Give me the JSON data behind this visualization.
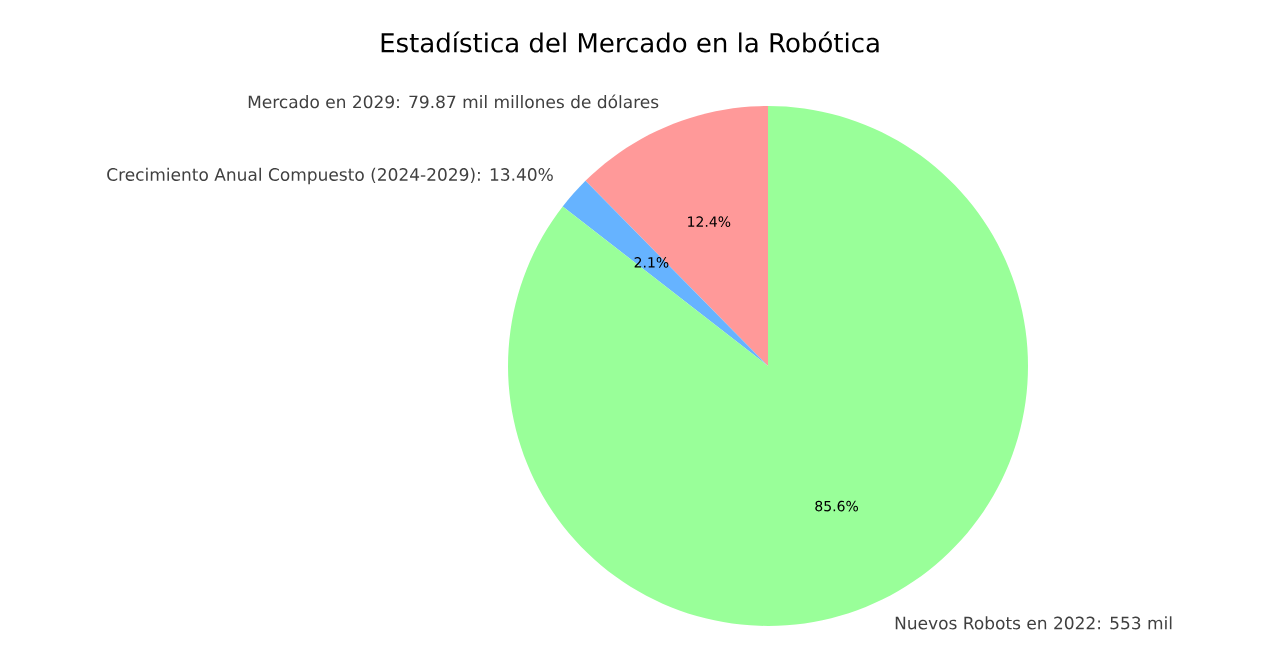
{
  "chart_data": {
    "type": "pie",
    "title": "Estadística del Mercado en la Robótica",
    "categories": [
      "Mercado en 2029: 79.87 mil millones de dólares",
      "Crecimiento Anual Compuesto (2024-2029): 13.40%",
      "Nuevos Robots en 2022: 553 mil"
    ],
    "values": [
      12.4,
      2.1,
      85.6
    ],
    "value_labels": [
      "12.4%",
      "2.1%",
      "85.6%"
    ],
    "colors": [
      "#ff9999",
      "#66b3ff",
      "#99ff99"
    ]
  }
}
